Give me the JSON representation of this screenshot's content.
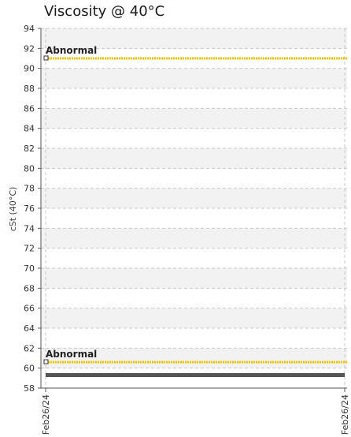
{
  "chart_data": {
    "type": "line",
    "title": "Viscosity @ 40°C",
    "ylabel": "cSt (40°C)",
    "xlabel": "",
    "ylim": [
      58,
      94
    ],
    "yticks": [
      58,
      60,
      62,
      64,
      66,
      68,
      70,
      72,
      74,
      76,
      78,
      80,
      82,
      84,
      86,
      88,
      90,
      92,
      94
    ],
    "xticks": [
      "Feb26/24",
      "Feb26/24"
    ],
    "grid": true,
    "limits": [
      {
        "label": "Abnormal",
        "value": 91.0,
        "color": "#f2c400"
      },
      {
        "label": "Abnormal",
        "value": 60.6,
        "color": "#f2c400"
      }
    ],
    "series": [
      {
        "values": [
          59.3,
          59.3
        ],
        "color": "#555555"
      }
    ],
    "colors": {
      "band": "#f2f2f2",
      "grid": "#c8c8c8",
      "axis": "#555555",
      "text": "#333333"
    }
  }
}
